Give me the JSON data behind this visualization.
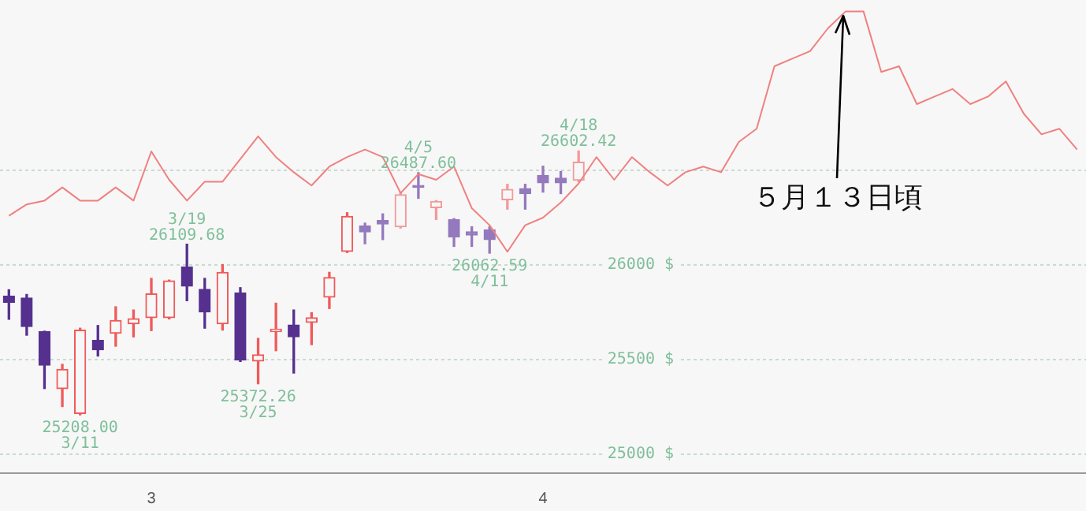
{
  "chart_data": {
    "type": "candlestick",
    "categories": [
      null,
      null,
      null,
      null,
      null,
      null,
      null,
      null,
      "3",
      null,
      null,
      null,
      null,
      null,
      null,
      null,
      null,
      null,
      null,
      null,
      null,
      null,
      null,
      null,
      null,
      null,
      null,
      null,
      null,
      null,
      "4",
      null,
      null,
      null,
      null,
      null,
      null,
      null,
      null,
      null,
      null,
      null,
      null,
      null,
      null,
      null,
      null,
      null,
      null,
      null,
      null,
      null,
      null,
      null,
      null,
      null,
      null,
      null,
      null,
      null,
      null
    ],
    "ohlc": [
      [
        25836,
        25869,
        25713,
        25803
      ],
      [
        25825,
        25844,
        25629,
        25675
      ],
      [
        25648,
        25650,
        25347,
        25470
      ],
      [
        25347,
        25475,
        25252,
        25448
      ],
      [
        25215,
        25666,
        25208,
        25656
      ],
      [
        25601,
        25680,
        25519,
        25552
      ],
      [
        25639,
        25779,
        25571,
        25707
      ],
      [
        25689,
        25762,
        25620,
        25716
      ],
      [
        25721,
        25929,
        25653,
        25847
      ],
      [
        25721,
        25920,
        25715,
        25916
      ],
      [
        25989,
        26109.68,
        25811,
        25888
      ],
      [
        25871,
        25929,
        25666,
        25752
      ],
      [
        25689,
        26002,
        25656,
        25961
      ],
      [
        25852,
        25880,
        25490,
        25498
      ],
      [
        25492,
        25612,
        25372.26,
        25525
      ],
      [
        25648,
        25798,
        25547,
        25661
      ],
      [
        25683,
        25762,
        25429,
        25620
      ],
      [
        25697,
        25748,
        25579,
        25721
      ],
      [
        25830,
        25961,
        25770,
        25934
      ],
      [
        26071,
        26276,
        26066,
        26257
      ],
      [
        26207,
        26221,
        26112,
        26175
      ],
      [
        26235,
        26270,
        26134,
        26216
      ],
      [
        26202,
        26380,
        26195,
        26371
      ],
      [
        26420,
        26487.6,
        26352,
        26410
      ],
      [
        26303,
        26340,
        26240,
        26336
      ],
      [
        26240,
        26245,
        26098,
        26148
      ],
      [
        26175,
        26202,
        26098,
        26158
      ],
      [
        26186,
        26202,
        26062.59,
        26134
      ],
      [
        26344,
        26426,
        26295,
        26399
      ],
      [
        26404,
        26426,
        26295,
        26377
      ],
      [
        26473,
        26522,
        26385,
        26434
      ],
      [
        26459,
        26494,
        26377,
        26434
      ],
      [
        26448,
        26602.42,
        26440,
        26543
      ],
      null,
      null,
      null,
      null,
      null,
      null,
      null,
      null,
      null,
      null,
      null,
      null,
      null,
      null,
      null,
      null,
      null,
      null,
      null,
      null,
      null,
      null,
      null,
      null,
      null,
      null,
      null,
      null
    ],
    "colors": [
      "#55308f",
      "#55308f",
      "#55308f",
      "#f05a5a",
      "#f05a5a",
      "#55308f",
      "#f05a5a",
      "#f05a5a",
      "#f05a5a",
      "#f05a5a",
      "#55308f",
      "#55308f",
      "#f05a5a",
      "#55308f",
      "#f05a5a",
      "#f05a5a",
      "#55308f",
      "#f05a5a",
      "#f05a5a",
      "#f05a5a",
      "#9479bd",
      "#9479bd",
      "#f29a9a",
      "#9479bd",
      "#f29a9a",
      "#9479bd",
      "#9479bd",
      "#9479bd",
      "#f29a9a",
      "#9479bd",
      "#9479bd",
      "#9479bd",
      "#f29a9a",
      null,
      null,
      null,
      null,
      null,
      null,
      null,
      null,
      null,
      null,
      null,
      null,
      null,
      null,
      null,
      null,
      null,
      null,
      null,
      null,
      null,
      null,
      null,
      null,
      null,
      null,
      null,
      null
    ],
    "series": [
      {
        "type": "line",
        "color": "#f08080",
        "values": [
          26260,
          26320,
          26340,
          26410,
          26340,
          26340,
          26410,
          26340,
          26600,
          26450,
          26340,
          26440,
          26440,
          26560,
          26680,
          26570,
          26490,
          26420,
          26520,
          26570,
          26610,
          26570,
          26380,
          26480,
          26450,
          26520,
          26300,
          26210,
          26070,
          26210,
          26250,
          26330,
          26430,
          26570,
          26450,
          26570,
          26490,
          26420,
          26490,
          26520,
          26490,
          26650,
          26720,
          27050,
          27090,
          27130,
          27250,
          27340,
          27340,
          27020,
          27050,
          26850,
          26890,
          26930,
          26850,
          26890,
          26970,
          26800,
          26690,
          26720,
          26610
        ]
      }
    ],
    "ylim": [
      24900,
      27400
    ],
    "yticks": [
      {
        "value": 25000,
        "label": "25000 $"
      },
      {
        "value": 25500,
        "label": "25500 $"
      },
      {
        "value": 26000,
        "label": "26000 $"
      },
      {
        "value": 26500,
        "label": null
      }
    ],
    "grid": "y",
    "annotations": [
      {
        "text": "25208.00\n3/11",
        "y": 25208
      },
      {
        "text": "3/19\n26109.68",
        "y": 26109.68
      },
      {
        "text": "25372.26\n3/25",
        "y": 25372.26
      },
      {
        "text": "4/5\n26487.60",
        "y": 26487.6
      },
      {
        "text": "26062.59\n4/11",
        "y": 26062.59
      },
      {
        "text": "4/18\n26602.42",
        "y": 26602.42
      },
      {
        "text": "５月１３日頃",
        "y": 27340
      }
    ]
  }
}
